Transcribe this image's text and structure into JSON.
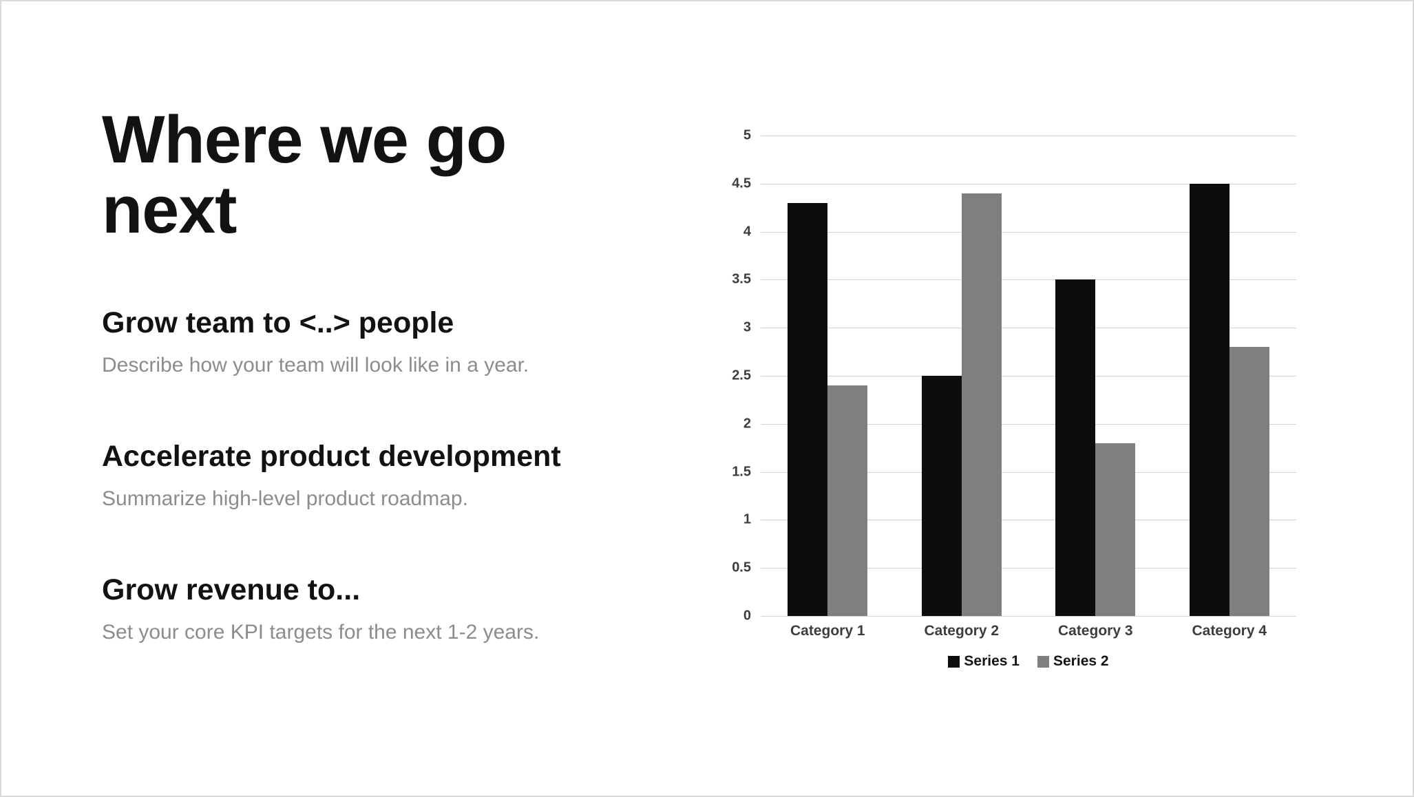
{
  "slide": {
    "title": "Where we go next",
    "sections": [
      {
        "heading": "Grow team to <..> people",
        "body": "Describe how your team will look like in a year."
      },
      {
        "heading": "Accelerate product development",
        "body": "Summarize high-level product roadmap."
      },
      {
        "heading": "Grow revenue to...",
        "body": "Set your core KPI targets for the next 1-2 years."
      }
    ]
  },
  "chart_data": {
    "type": "bar",
    "title": "",
    "categories": [
      "Category 1",
      "Category 2",
      "Category 3",
      "Category 4"
    ],
    "series": [
      {
        "name": "Series 1",
        "color": "#0d0d0d",
        "values": [
          4.3,
          2.5,
          3.5,
          4.5
        ]
      },
      {
        "name": "Series 2",
        "color": "#7f7f7f",
        "values": [
          2.4,
          4.4,
          1.8,
          2.8
        ]
      }
    ],
    "ylim": [
      0,
      5
    ],
    "ytick_step": 0.5,
    "ytick_labels": [
      "0",
      "0.5",
      "1",
      "1.5",
      "2",
      "2.5",
      "3",
      "3.5",
      "4",
      "4.5",
      "5"
    ],
    "grid": "horizontal",
    "legend_position": "bottom",
    "colors": {
      "grid": "#d4d4d4",
      "tick_text": "#3d3d3d"
    }
  }
}
